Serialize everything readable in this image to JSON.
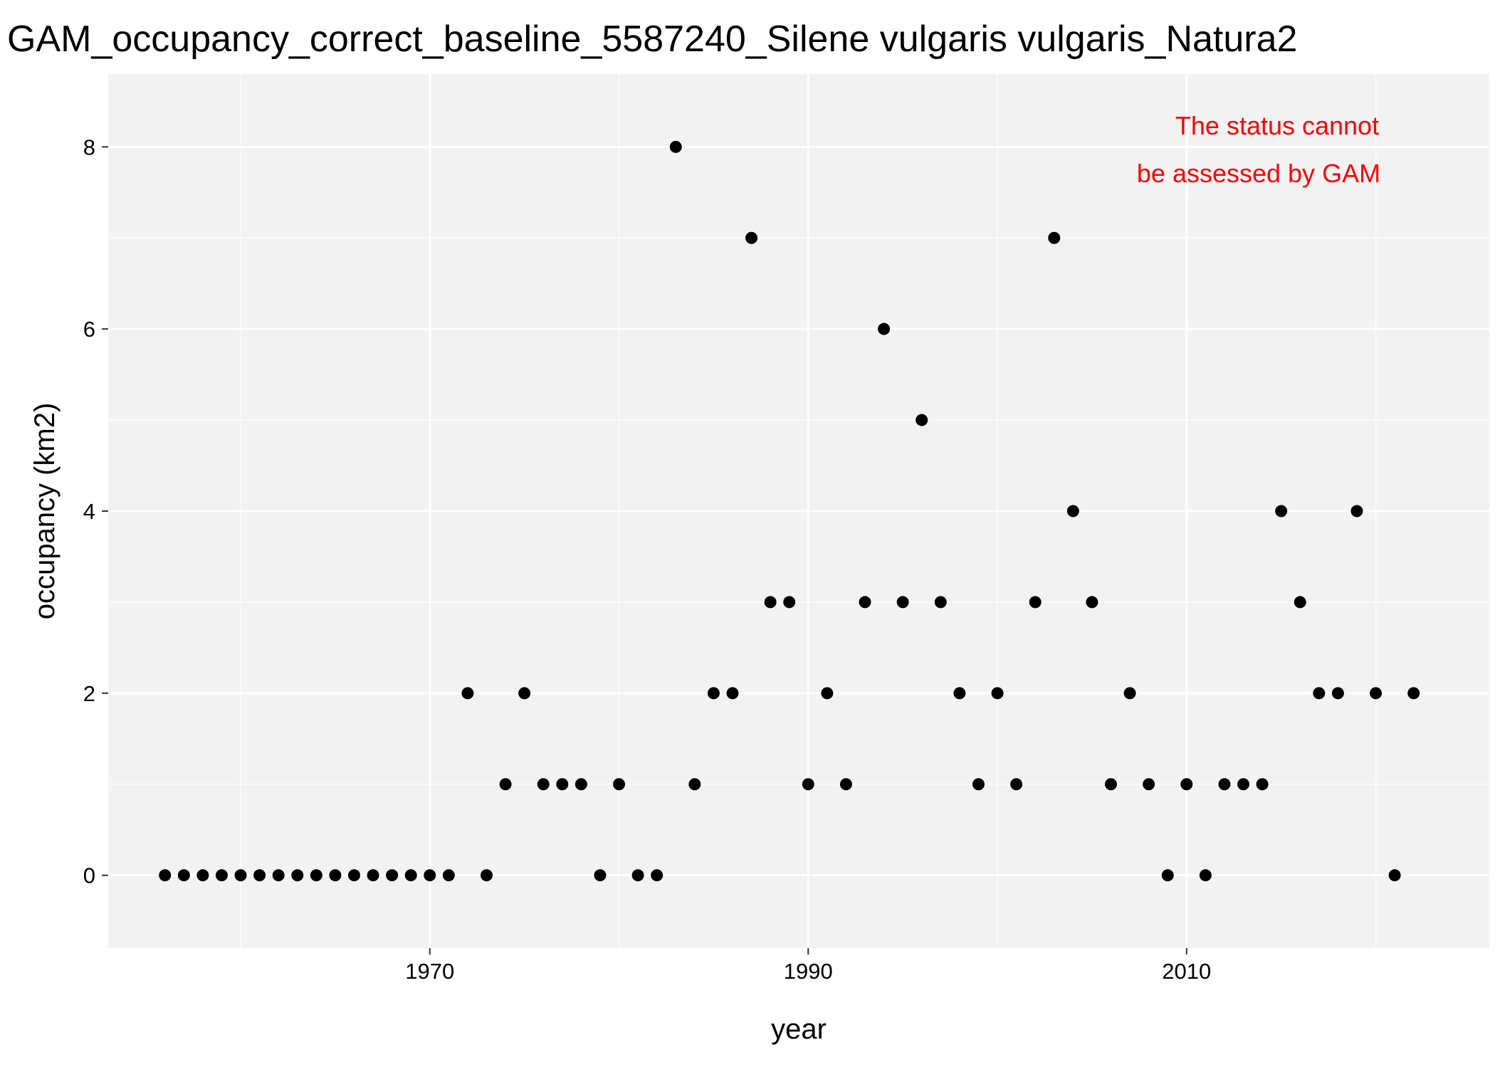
{
  "colors": {
    "panel_background": "#f2f2f2",
    "grid_major": "#ffffff",
    "grid_minor": "#fafafa",
    "point": "#000000",
    "annotation": "#ff0000",
    "text": "#000000"
  },
  "chart_data": {
    "type": "scatter",
    "title": "GAM_occupancy_correct_baseline_5587240_Silene vulgaris vulgaris_Natura2",
    "xlabel": "year",
    "ylabel": "occupancy (km2)",
    "xlim": [
      1953,
      2026
    ],
    "ylim": [
      -0.8,
      8.8
    ],
    "x_ticks": [
      1970,
      1990,
      2010
    ],
    "x_tick_labels": [
      "1970",
      "1990",
      "2010"
    ],
    "y_ticks": [
      0,
      2,
      4,
      6,
      8
    ],
    "y_tick_labels": [
      "0",
      "2",
      "4",
      "6",
      "8"
    ],
    "grid": true,
    "legend": "none",
    "annotation": {
      "lines": [
        "The status cannot",
        "be assessed by GAM"
      ],
      "placement": "top-right"
    },
    "series": [
      {
        "x": [
          1956,
          1957,
          1958,
          1959,
          1960,
          1961,
          1962,
          1963,
          1964,
          1965,
          1966,
          1967,
          1968,
          1969,
          1970,
          1971,
          1972,
          1973,
          1974,
          1975,
          1976,
          1977,
          1978,
          1979,
          1980,
          1981,
          1982,
          1983,
          1984,
          1985,
          1986,
          1987,
          1988,
          1989,
          1990,
          1991,
          1992,
          1993,
          1994,
          1995,
          1996,
          1997,
          1998,
          1999,
          2000,
          2001,
          2002,
          2003,
          2004,
          2005,
          2006,
          2007,
          2008,
          2009,
          2010,
          2011,
          2012,
          2013,
          2014,
          2015,
          2016,
          2017,
          2018,
          2019,
          2020,
          2021,
          2022
        ],
        "y": [
          0,
          0,
          0,
          0,
          0,
          0,
          0,
          0,
          0,
          0,
          0,
          0,
          0,
          0,
          0,
          0,
          2,
          0,
          1,
          2,
          1,
          1,
          1,
          0,
          1,
          0,
          0,
          8,
          1,
          2,
          2,
          7,
          3,
          3,
          1,
          2,
          1,
          3,
          6,
          3,
          5,
          3,
          2,
          1,
          2,
          1,
          3,
          7,
          4,
          3,
          1,
          2,
          1,
          0,
          1,
          0,
          1,
          1,
          1,
          4,
          3,
          2,
          2,
          4,
          2,
          0,
          2
        ]
      }
    ]
  }
}
